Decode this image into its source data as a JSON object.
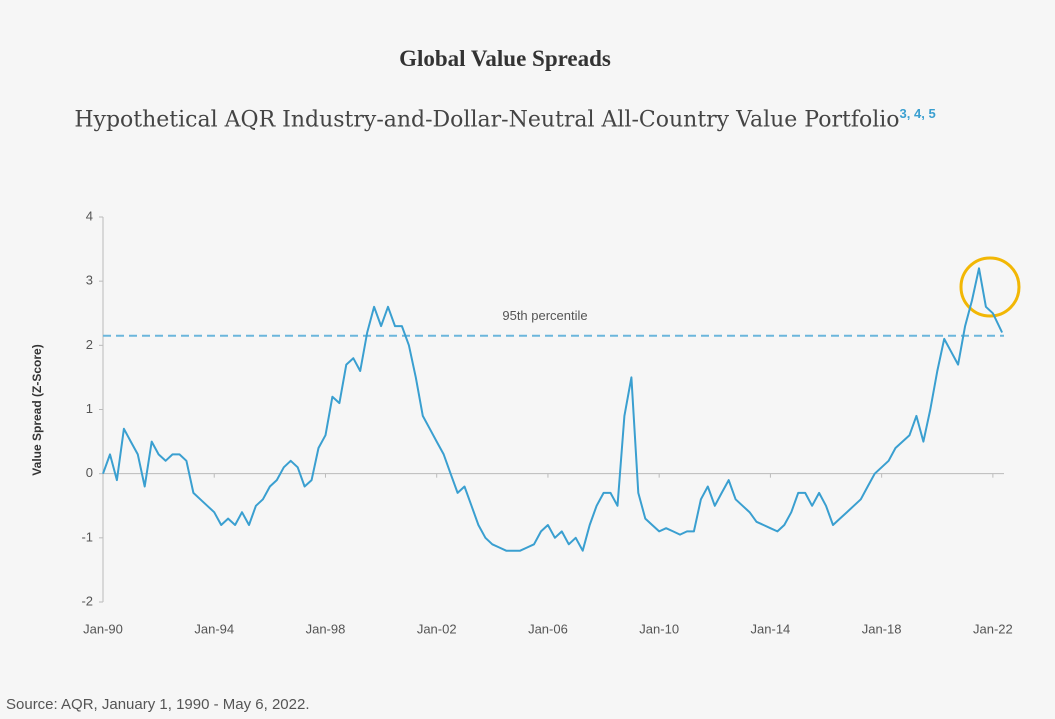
{
  "chart_data": {
    "type": "line",
    "title": "Global Value Spreads",
    "subtitle": "Hypothetical AQR Industry-and-Dollar-Neutral All-Country Value Portfolio",
    "footnotes": "3, 4, 5",
    "ylabel": "Value Spread (Z-Score)",
    "source": "Source: AQR, January 1, 1990 - May 6, 2022.",
    "xlim": [
      1990,
      2022.4
    ],
    "xticks": [
      {
        "value": 1990,
        "label": "Jan-90"
      },
      {
        "value": 1994,
        "label": "Jan-94"
      },
      {
        "value": 1998,
        "label": "Jan-98"
      },
      {
        "value": 2002,
        "label": "Jan-02"
      },
      {
        "value": 2006,
        "label": "Jan-06"
      },
      {
        "value": 2010,
        "label": "Jan-10"
      },
      {
        "value": 2014,
        "label": "Jan-14"
      },
      {
        "value": 2018,
        "label": "Jan-18"
      },
      {
        "value": 2022,
        "label": "Jan-22"
      }
    ],
    "ylim": [
      -2,
      4
    ],
    "yticks": [
      -2,
      -1,
      0,
      1,
      2,
      3,
      4
    ],
    "reference_line": {
      "value": 2.15,
      "label": "95th percentile"
    },
    "series": [
      {
        "name": "Value Spread",
        "color": "#3a9fd0",
        "x": [
          1990,
          1990.25,
          1990.5,
          1990.75,
          1991,
          1991.25,
          1991.5,
          1991.75,
          1992,
          1992.25,
          1992.5,
          1992.75,
          1993,
          1993.25,
          1993.5,
          1993.75,
          1994,
          1994.25,
          1994.5,
          1994.75,
          1995,
          1995.25,
          1995.5,
          1995.75,
          1996,
          1996.25,
          1996.5,
          1996.75,
          1997,
          1997.25,
          1997.5,
          1997.75,
          1998,
          1998.25,
          1998.5,
          1998.75,
          1999,
          1999.25,
          1999.5,
          1999.75,
          2000,
          2000.25,
          2000.5,
          2000.75,
          2001,
          2001.25,
          2001.5,
          2001.75,
          2002,
          2002.25,
          2002.5,
          2002.75,
          2003,
          2003.25,
          2003.5,
          2003.75,
          2004,
          2004.25,
          2004.5,
          2004.75,
          2005,
          2005.25,
          2005.5,
          2005.75,
          2006,
          2006.25,
          2006.5,
          2006.75,
          2007,
          2007.25,
          2007.5,
          2007.75,
          2008,
          2008.25,
          2008.5,
          2008.75,
          2009,
          2009.25,
          2009.5,
          2009.75,
          2010,
          2010.25,
          2010.5,
          2010.75,
          2011,
          2011.25,
          2011.5,
          2011.75,
          2012,
          2012.25,
          2012.5,
          2012.75,
          2013,
          2013.25,
          2013.5,
          2013.75,
          2014,
          2014.25,
          2014.5,
          2014.75,
          2015,
          2015.25,
          2015.5,
          2015.75,
          2016,
          2016.25,
          2016.5,
          2016.75,
          2017,
          2017.25,
          2017.5,
          2017.75,
          2018,
          2018.25,
          2018.5,
          2018.75,
          2019,
          2019.25,
          2019.5,
          2019.75,
          2020,
          2020.25,
          2020.5,
          2020.75,
          2021,
          2021.25,
          2021.5,
          2021.75,
          2022,
          2022.33
        ],
        "values": [
          0,
          0.3,
          -0.1,
          0.7,
          0.5,
          0.3,
          -0.2,
          0.5,
          0.3,
          0.2,
          0.3,
          0.3,
          0.2,
          -0.3,
          -0.4,
          -0.5,
          -0.6,
          -0.8,
          -0.7,
          -0.8,
          -0.6,
          -0.8,
          -0.5,
          -0.4,
          -0.2,
          -0.1,
          0.1,
          0.2,
          0.1,
          -0.2,
          -0.1,
          0.4,
          0.6,
          1.2,
          1.1,
          1.7,
          1.8,
          1.6,
          2.2,
          2.6,
          2.3,
          2.6,
          2.3,
          2.3,
          2.0,
          1.5,
          0.9,
          0.7,
          0.5,
          0.3,
          0,
          -0.3,
          -0.2,
          -0.5,
          -0.8,
          -1.0,
          -1.1,
          -1.15,
          -1.2,
          -1.2,
          -1.2,
          -1.15,
          -1.1,
          -0.9,
          -0.8,
          -1.0,
          -0.9,
          -1.1,
          -1.0,
          -1.2,
          -0.8,
          -0.5,
          -0.3,
          -0.3,
          -0.5,
          0.9,
          1.5,
          -0.3,
          -0.7,
          -0.8,
          -0.9,
          -0.85,
          -0.9,
          -0.95,
          -0.9,
          -0.9,
          -0.4,
          -0.2,
          -0.5,
          -0.3,
          -0.1,
          -0.4,
          -0.5,
          -0.6,
          -0.75,
          -0.8,
          -0.85,
          -0.9,
          -0.8,
          -0.6,
          -0.3,
          -0.3,
          -0.5,
          -0.3,
          -0.5,
          -0.8,
          -0.7,
          -0.6,
          -0.5,
          -0.4,
          -0.2,
          0,
          0.1,
          0.2,
          0.4,
          0.5,
          0.6,
          0.9,
          0.5,
          1.0,
          1.6,
          2.1,
          1.9,
          1.7,
          2.3,
          2.7,
          3.2,
          2.6,
          2.5,
          2.2
        ]
      }
    ]
  }
}
